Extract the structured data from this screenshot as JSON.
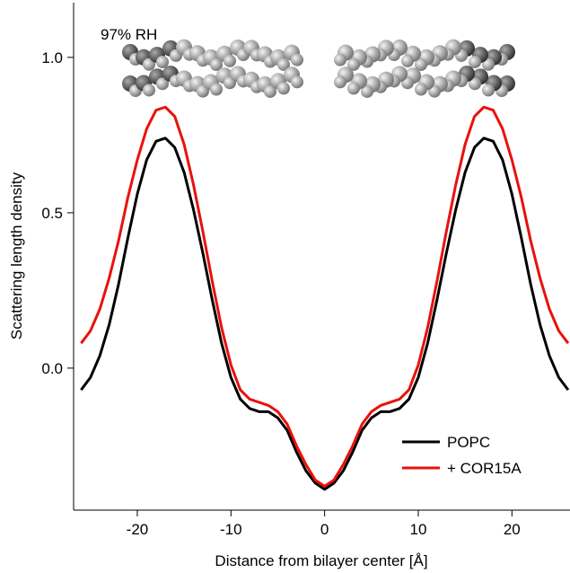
{
  "chart_data": {
    "type": "line",
    "annotation": "97% RH",
    "xlabel": "Distance from bilayer center [Å]",
    "ylabel": "Scattering length density",
    "x": [
      -26,
      -25,
      -24,
      -23,
      -22,
      -21,
      -20,
      -19,
      -18,
      -17,
      -16,
      -15,
      -14,
      -13,
      -12,
      -11,
      -10,
      -9,
      -8,
      -7,
      -6,
      -5,
      -4,
      -3,
      -2,
      -1,
      0,
      1,
      2,
      3,
      4,
      5,
      6,
      7,
      8,
      9,
      10,
      11,
      12,
      13,
      14,
      15,
      16,
      17,
      18,
      19,
      20,
      21,
      22,
      23,
      24,
      25,
      26
    ],
    "series": [
      {
        "name": "POPC",
        "color": "#000000",
        "values": [
          -0.07,
          -0.03,
          0.04,
          0.14,
          0.27,
          0.42,
          0.56,
          0.67,
          0.73,
          0.74,
          0.71,
          0.63,
          0.51,
          0.37,
          0.22,
          0.08,
          -0.03,
          -0.1,
          -0.13,
          -0.14,
          -0.14,
          -0.16,
          -0.2,
          -0.27,
          -0.33,
          -0.37,
          -0.39,
          -0.37,
          -0.33,
          -0.27,
          -0.2,
          -0.16,
          -0.14,
          -0.14,
          -0.13,
          -0.1,
          -0.03,
          0.08,
          0.22,
          0.37,
          0.51,
          0.63,
          0.71,
          0.74,
          0.73,
          0.67,
          0.56,
          0.42,
          0.27,
          0.14,
          0.04,
          -0.03,
          -0.07
        ]
      },
      {
        "name": "+ COR15A",
        "color": "#e8120c",
        "values": [
          0.08,
          0.12,
          0.19,
          0.29,
          0.41,
          0.55,
          0.67,
          0.77,
          0.83,
          0.84,
          0.81,
          0.72,
          0.59,
          0.44,
          0.28,
          0.13,
          0.01,
          -0.07,
          -0.1,
          -0.11,
          -0.12,
          -0.14,
          -0.18,
          -0.25,
          -0.31,
          -0.36,
          -0.38,
          -0.36,
          -0.31,
          -0.25,
          -0.18,
          -0.14,
          -0.12,
          -0.11,
          -0.1,
          -0.07,
          0.01,
          0.13,
          0.28,
          0.44,
          0.59,
          0.72,
          0.81,
          0.84,
          0.83,
          0.77,
          0.67,
          0.55,
          0.41,
          0.29,
          0.19,
          0.12,
          0.08
        ]
      }
    ],
    "xlim": [
      -26.8,
      26.2
    ],
    "ylim": [
      -0.457,
      1.176
    ],
    "xticks": [
      -20,
      -10,
      0,
      10,
      20
    ],
    "yticks": [
      {
        "value": 0,
        "label": "0.0"
      },
      0.5,
      {
        "value": 1,
        "label": "1.0"
      }
    ],
    "legend": "lower right"
  }
}
